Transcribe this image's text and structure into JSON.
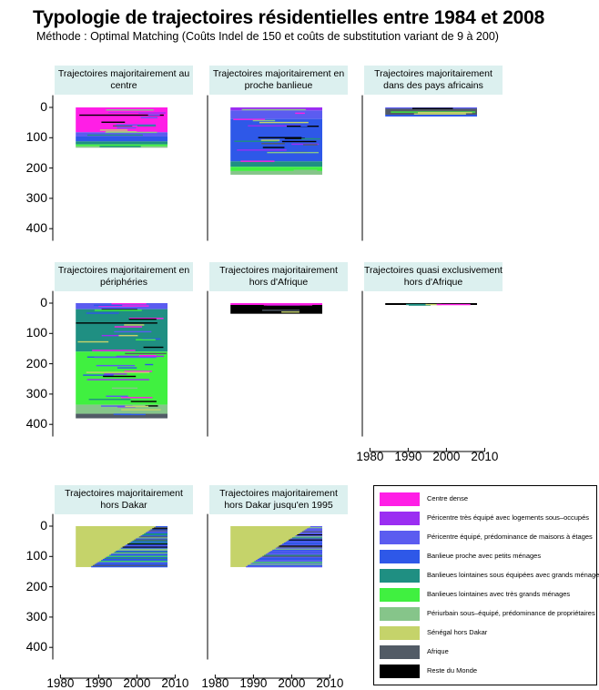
{
  "title": "Typologie de trajectoires résidentielles entre 1984 et 2008",
  "subtitle": "Méthode : Optimal Matching (Coûts Indel de 150 et coûts de substitution variant de 9 à 200)",
  "colors": {
    "centre_dense": "#ff1ee6",
    "pericentre_sous_occupes": "#9b2ef2",
    "pericentre_maisons_etages": "#5b5cf0",
    "banlieue_petits_menages": "#2e58e8",
    "banlieues_lointaines_sous_equipees": "#1f8f82",
    "banlieues_lointaines_tres_grands": "#40f040",
    "periurbain": "#86c58a",
    "senegal_hors_dakar": "#c5d36a",
    "afrique": "#525b66",
    "reste_du_monde": "#000000"
  },
  "chart_data": {
    "type": "heatmap",
    "kind": "sequence index plot",
    "x_axis": {
      "range": [
        1978,
        2012
      ],
      "data_range": [
        1984,
        2008
      ],
      "ticks": [
        1980,
        1990,
        2000,
        2010
      ]
    },
    "y_axis": {
      "range": [
        -40,
        440
      ],
      "ticks": [
        0,
        100,
        200,
        300,
        400
      ],
      "inverted": true
    },
    "grid": false,
    "legend_position": "bottom-right",
    "panels": [
      {
        "title": "Trajectoires majoritairement au centre",
        "n": 133,
        "blocks": [
          {
            "state": "centre_dense",
            "y0": 0,
            "y1": 82
          },
          {
            "state": "pericentre_maisons_etages",
            "y0": 82,
            "y1": 96
          },
          {
            "state": "banlieue_petits_menages",
            "y0": 96,
            "y1": 112
          },
          {
            "state": "banlieues_lointaines_sous_equipees",
            "y0": 112,
            "y1": 122
          },
          {
            "state": "banlieues_lointaines_tres_grands",
            "y0": 122,
            "y1": 128
          },
          {
            "state": "periurbain",
            "y0": 128,
            "y1": 133
          }
        ]
      },
      {
        "title": "Trajectoires majoritairement en proche banlieue",
        "n": 222,
        "blocks": [
          {
            "state": "pericentre_sous_occupes",
            "y0": 0,
            "y1": 10
          },
          {
            "state": "pericentre_maisons_etages",
            "y0": 10,
            "y1": 38
          },
          {
            "state": "banlieue_petits_menages",
            "y0": 38,
            "y1": 178
          },
          {
            "state": "banlieues_lointaines_sous_equipees",
            "y0": 178,
            "y1": 196
          },
          {
            "state": "banlieues_lointaines_tres_grands",
            "y0": 196,
            "y1": 210
          },
          {
            "state": "periurbain",
            "y0": 210,
            "y1": 222
          }
        ]
      },
      {
        "title": "Trajectoires majoritairement dans des pays africains",
        "n": 30,
        "blocks": [
          {
            "state": "pericentre_maisons_etages",
            "y0": 0,
            "y1": 4
          },
          {
            "state": "afrique",
            "y0": 4,
            "y1": 24
          },
          {
            "state": "banlieue_petits_menages",
            "y0": 24,
            "y1": 30
          }
        ]
      },
      {
        "title": "Trajectoires majoritairement en périphéries",
        "n": 380,
        "blocks": [
          {
            "state": "pericentre_maisons_etages",
            "y0": 0,
            "y1": 20
          },
          {
            "state": "banlieues_lointaines_sous_equipees",
            "y0": 20,
            "y1": 160
          },
          {
            "state": "banlieues_lointaines_tres_grands",
            "y0": 160,
            "y1": 335
          },
          {
            "state": "periurbain",
            "y0": 335,
            "y1": 365
          },
          {
            "state": "afrique",
            "y0": 365,
            "y1": 380
          }
        ]
      },
      {
        "title": "Trajectoires majoritairement hors d'Afrique",
        "n": 35,
        "blocks": [
          {
            "state": "centre_dense",
            "y0": 0,
            "y1": 6
          },
          {
            "state": "reste_du_monde",
            "y0": 6,
            "y1": 35
          }
        ]
      },
      {
        "title": "Trajectoires quasi exclusivement hors d'Afrique",
        "n": 6,
        "blocks": [
          {
            "state": "reste_du_monde",
            "y0": 0,
            "y1": 6
          }
        ]
      },
      {
        "title": "Trajectoires majoritairement hors Dakar",
        "n": 135,
        "blocks": [
          {
            "state": "senegal_hors_dakar",
            "y0": 0,
            "y1": 135
          }
        ],
        "onset_state": "banlieue_petits_menages"
      },
      {
        "title": "Trajectoires majoritairement hors Dakar jusqu'en 1995",
        "n": 135,
        "blocks": [
          {
            "state": "senegal_hors_dakar",
            "y0": 0,
            "y1": 135
          }
        ],
        "onset_state": "pericentre_maisons_etages"
      }
    ],
    "legend": [
      {
        "key": "centre_dense",
        "label": "Centre dense"
      },
      {
        "key": "pericentre_sous_occupes",
        "label": "Péricentre très équipé avec logements sous–occupés"
      },
      {
        "key": "pericentre_maisons_etages",
        "label": "Péricentre équipé, prédominance de maisons à étages"
      },
      {
        "key": "banlieue_petits_menages",
        "label": "Banlieue proche avec petits ménages"
      },
      {
        "key": "banlieues_lointaines_sous_equipees",
        "label": "Banlieues lointaines sous équipées avec grands ménages"
      },
      {
        "key": "banlieues_lointaines_tres_grands",
        "label": "Banlieues lointaines avec très grands ménages"
      },
      {
        "key": "periurbain",
        "label": "Périurbain sous–équipé, prédominance de propriétaires"
      },
      {
        "key": "senegal_hors_dakar",
        "label": "Sénégal hors Dakar"
      },
      {
        "key": "afrique",
        "label": "Afrique"
      },
      {
        "key": "reste_du_monde",
        "label": "Reste du Monde"
      }
    ]
  }
}
